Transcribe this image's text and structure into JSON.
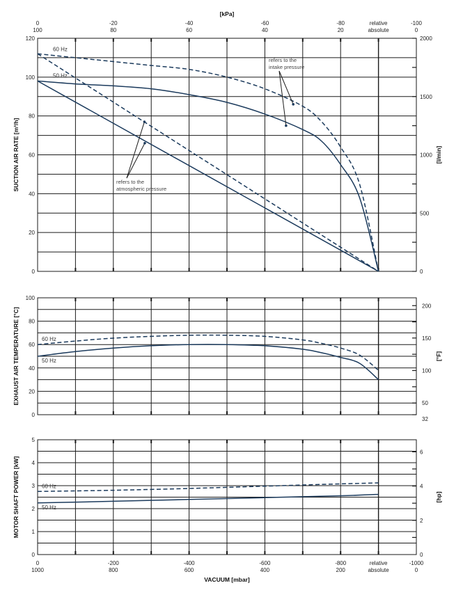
{
  "top_axis": {
    "title": "[kPa]",
    "ticks": [
      {
        "mbar": 0,
        "rel": "0",
        "abs": "100"
      },
      {
        "mbar": -200,
        "rel": "-20",
        "abs": "80"
      },
      {
        "mbar": -400,
        "rel": "-40",
        "abs": "60"
      },
      {
        "mbar": -600,
        "rel": "-60",
        "abs": "40"
      },
      {
        "mbar": -800,
        "rel": "-80",
        "abs": "20"
      },
      {
        "mbar": -900,
        "rel": "relative",
        "abs": "absolute"
      },
      {
        "mbar": -1000,
        "rel": "-100",
        "abs": "0"
      }
    ]
  },
  "bottom_axis": {
    "title": "VACUUM [mbar]",
    "ticks": [
      {
        "mbar": 0,
        "rel": "0",
        "abs": "1000"
      },
      {
        "mbar": -200,
        "rel": "-200",
        "abs": "800"
      },
      {
        "mbar": -400,
        "rel": "-400",
        "abs": "600"
      },
      {
        "mbar": -600,
        "rel": "-600",
        "abs": "400"
      },
      {
        "mbar": -800,
        "rel": "-800",
        "abs": "200"
      },
      {
        "mbar": -900,
        "rel": "relative",
        "abs": "absolute"
      },
      {
        "mbar": -1000,
        "rel": "-1000",
        "abs": "0"
      }
    ]
  },
  "chart_data": [
    {
      "type": "line",
      "id": "suction",
      "ylabel": "SUCTION AIR RATE [m³/h]",
      "y2label": "[l/min]",
      "xlim": [
        0,
        -1000
      ],
      "ylim": [
        0,
        120
      ],
      "yticks": [
        0,
        20,
        40,
        60,
        80,
        100,
        120
      ],
      "y2lim": [
        0,
        2000
      ],
      "y2ticks": [
        0,
        500,
        1000,
        1500,
        2000
      ],
      "series": [
        {
          "name": "60 Hz intake",
          "label": "60 Hz",
          "style": "dashed",
          "x": [
            0,
            -100,
            -200,
            -300,
            -400,
            -500,
            -600,
            -700,
            -750,
            -800,
            -850,
            -900
          ],
          "y": [
            112,
            110,
            108,
            106,
            104,
            100,
            94,
            85,
            77,
            64,
            45,
            0
          ]
        },
        {
          "name": "50 Hz intake",
          "label": "50 Hz",
          "style": "solid",
          "x": [
            0,
            -100,
            -200,
            -300,
            -400,
            -500,
            -600,
            -700,
            -750,
            -800,
            -850,
            -900
          ],
          "y": [
            98,
            96.5,
            95.5,
            94,
            91,
            87,
            81,
            73,
            67,
            55,
            38,
            0
          ]
        },
        {
          "name": "60 Hz atmospheric",
          "style": "dashed",
          "x": [
            0,
            -900
          ],
          "y": [
            112,
            0
          ]
        },
        {
          "name": "50 Hz atmospheric",
          "style": "solid",
          "x": [
            0,
            -900
          ],
          "y": [
            98,
            0
          ]
        }
      ],
      "annotations": [
        {
          "lines": [
            "refers to the",
            "intake pressure"
          ]
        },
        {
          "lines": [
            "refers to the",
            "atmospheric pressure"
          ]
        }
      ]
    },
    {
      "type": "line",
      "id": "temperature",
      "ylabel": "EXHAUST AIR TEMPERATURE [°C]",
      "y2label": "[°F]",
      "xlim": [
        0,
        -1000
      ],
      "ylim": [
        0,
        100
      ],
      "yticks": [
        0,
        20,
        40,
        60,
        80,
        100
      ],
      "y2ticks": [
        {
          "c": 0,
          "label": "32"
        },
        {
          "c": 10,
          "label": "50"
        },
        {
          "c": 37.8,
          "label": "100"
        },
        {
          "c": 65.6,
          "label": "150"
        },
        {
          "c": 93.3,
          "label": "200"
        }
      ],
      "series": [
        {
          "name": "60 Hz",
          "label": "60 Hz",
          "style": "dashed",
          "x": [
            0,
            -100,
            -200,
            -300,
            -400,
            -500,
            -600,
            -700,
            -750,
            -800,
            -850,
            -900
          ],
          "y": [
            60,
            63,
            65.5,
            67,
            68,
            68,
            67,
            64,
            61,
            57,
            51,
            38
          ]
        },
        {
          "name": "50 Hz",
          "label": "50 Hz",
          "style": "solid",
          "x": [
            0,
            -100,
            -200,
            -300,
            -400,
            -500,
            -600,
            -700,
            -750,
            -800,
            -850,
            -900
          ],
          "y": [
            50,
            54,
            57,
            59,
            60,
            60,
            59,
            56,
            53,
            49,
            44,
            30
          ]
        }
      ]
    },
    {
      "type": "line",
      "id": "power",
      "ylabel": "MOTOR SHAFT POWER [kW]",
      "y2label": "[hp]",
      "xlim": [
        0,
        -1000
      ],
      "ylim": [
        0,
        5
      ],
      "yticks": [
        0,
        1,
        2,
        3,
        4,
        5
      ],
      "y2ticks": [
        0,
        2,
        4,
        6
      ],
      "series": [
        {
          "name": "60 Hz",
          "label": "60 Hz",
          "style": "dashed",
          "x": [
            0,
            -200,
            -400,
            -600,
            -800,
            -900
          ],
          "y": [
            2.75,
            2.8,
            2.88,
            2.98,
            3.08,
            3.12
          ]
        },
        {
          "name": "50 Hz",
          "label": "50 Hz",
          "style": "solid",
          "x": [
            0,
            -200,
            -400,
            -600,
            -800,
            -900
          ],
          "y": [
            2.25,
            2.32,
            2.4,
            2.48,
            2.56,
            2.62
          ]
        }
      ]
    }
  ],
  "colors": {
    "curve": "#1b3a5c",
    "grid": "#1a1a1a"
  }
}
